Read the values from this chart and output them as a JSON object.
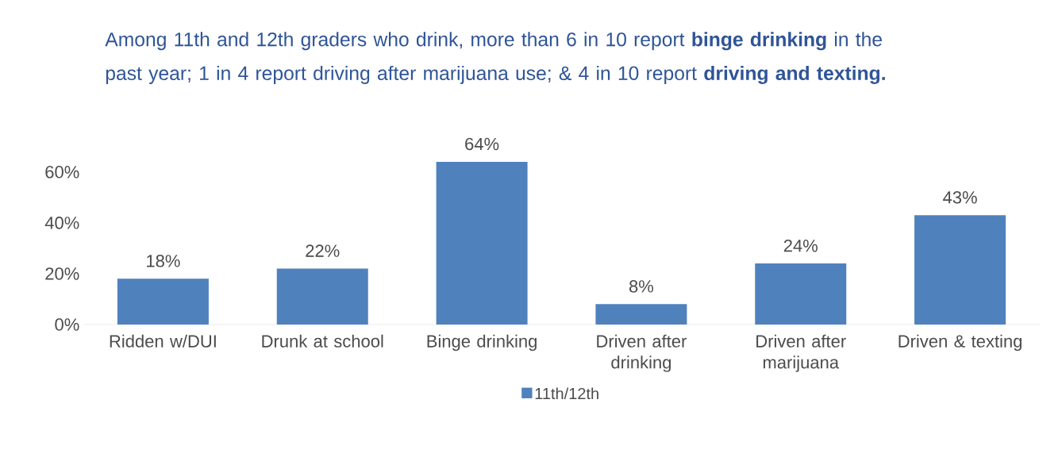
{
  "chart_data": {
    "type": "bar",
    "title": "Among 11th and 12th graders who drink, more than 6 in 10 report **binge drinking** in the past year; 1 in 4 report driving after marijuana use; & 4 in 10 report **driving and texting.**",
    "categories": [
      "Ridden w/DUI",
      "Drunk at school",
      "Binge drinking",
      "Driven after drinking",
      "Driven after marijuana",
      "Driven & texting"
    ],
    "series": [
      {
        "name": "11th/12th",
        "color": "#4f81bd",
        "values": [
          18,
          22,
          64,
          8,
          24,
          43
        ],
        "value_labels": [
          "18%",
          "22%",
          "64%",
          "8%",
          "24%",
          "43%"
        ]
      }
    ],
    "ylim": [
      0,
      64
    ],
    "yticks": [
      {
        "value": 0,
        "label": "0%"
      },
      {
        "value": 20,
        "label": "20%"
      },
      {
        "value": 40,
        "label": "40%"
      },
      {
        "value": 60,
        "label": "60%"
      }
    ],
    "grid": false,
    "legend": "bottom"
  }
}
